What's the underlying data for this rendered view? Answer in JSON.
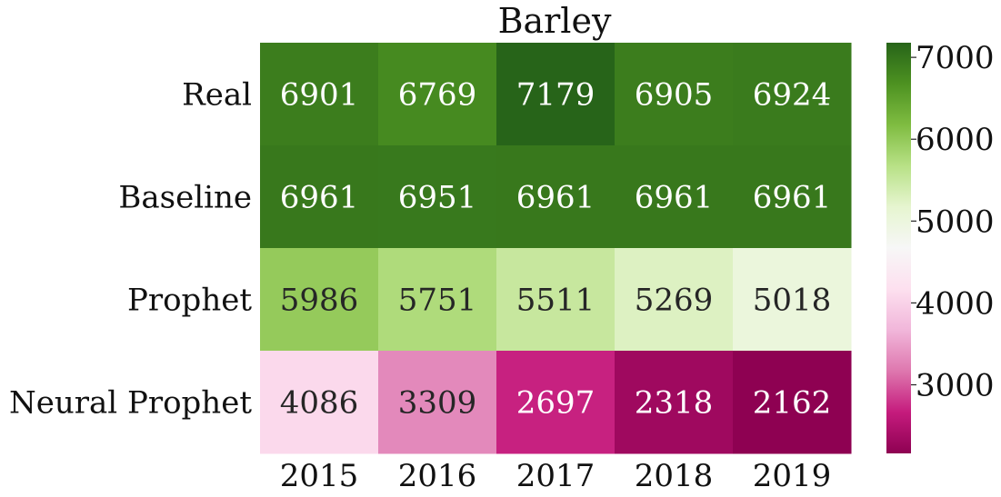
{
  "chart_data": {
    "type": "heatmap",
    "title": "Barley",
    "xlabel": "",
    "ylabel": "",
    "x_categories": [
      "2015",
      "2016",
      "2017",
      "2018",
      "2019"
    ],
    "y_categories": [
      "Real",
      "Baseline",
      "Prophet",
      "Neural Prophet"
    ],
    "values": [
      [
        6901,
        6769,
        7179,
        6905,
        6924
      ],
      [
        6961,
        6951,
        6961,
        6961,
        6961
      ],
      [
        5986,
        5751,
        5511,
        5269,
        5018
      ],
      [
        4086,
        3309,
        2697,
        2318,
        2162
      ]
    ],
    "colormap": "PiYG",
    "color_range": [
      2162,
      7179
    ],
    "colorbar_ticks": [
      3000,
      4000,
      5000,
      6000,
      7000
    ],
    "grid": false
  }
}
